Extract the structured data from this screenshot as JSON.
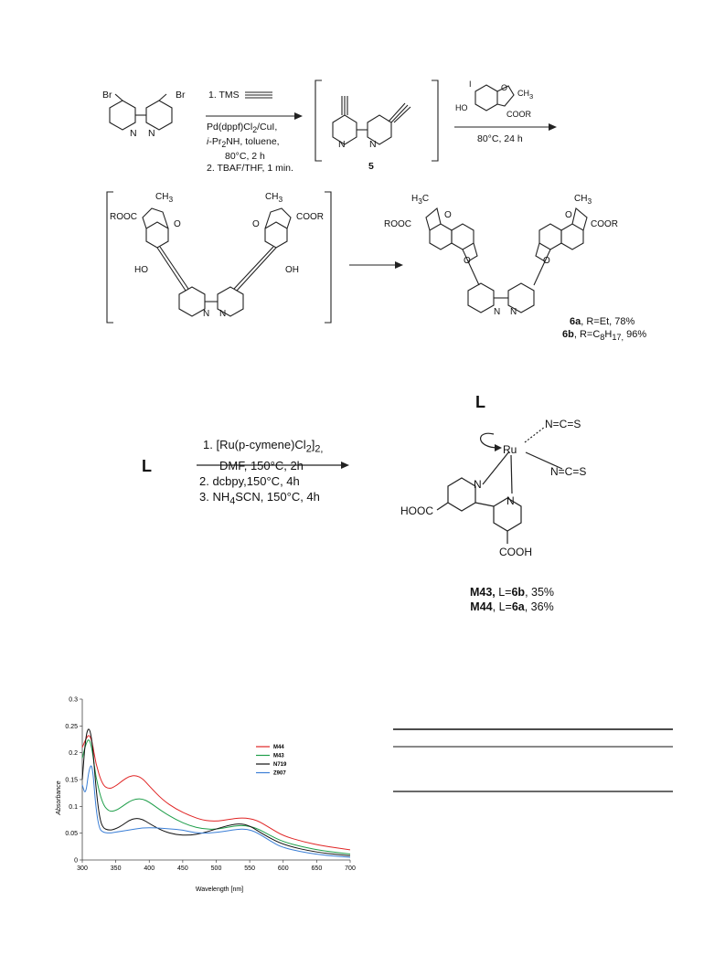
{
  "scheme": {
    "start_material": {
      "br_left": "Br",
      "br_right": "Br",
      "n_left": "N",
      "n_right": "N"
    },
    "step1": {
      "reagent_1": "1.   TMS",
      "line_2": "Pd(dppf)Cl",
      "line_2_sub": "2",
      "line_2_rest": "/CuI,",
      "line_3_pre": "i",
      "line_3": "-Pr",
      "line_3_sub": "2",
      "line_3_rest": "NH, toluene,",
      "line_4": "80°C, 2 h",
      "line_5": "2. TBAF/THF, 1 min."
    },
    "intermediate_5": {
      "label": "5",
      "n_left": "N",
      "n_right": "N"
    },
    "step2": {
      "iodo": "I",
      "ho": "HO",
      "o": "O",
      "ch3": "CH",
      "ch3_sub": "3",
      "coor": "COOR",
      "conditions": "80°C, 24 h"
    },
    "intermediate_bracket": {
      "rooc_left": "ROOC",
      "cooR_right": "COOR",
      "ch3_left": "CH",
      "ch3_right": "CH",
      "sub3": "3",
      "oh_left": "HO",
      "oh_right": "OH",
      "o": "O",
      "n": "N"
    },
    "product_6": {
      "h3c": "H",
      "h3c_sub": "3",
      "h3c_rest": "C",
      "ch3": "CH",
      "ch3_sub": "3",
      "rooc": "ROOC",
      "coor": "COOR",
      "o": "O",
      "n": "N",
      "label_6a_bold": "6a",
      "label_6a": ", R=Et, 78%",
      "label_6b_bold": "6b",
      "label_6b_pre": ", R=C",
      "label_6b_sub1": "8",
      "label_6b_mid": "H",
      "label_6b_sub2": "17,",
      "label_6b_rest": " 96%"
    },
    "step3": {
      "ligand": "L",
      "line_1_pre": "1. [Ru(p-cymene)Cl",
      "line_1_sub": "2",
      "line_1_mid": "]",
      "line_1_sub2": "2,",
      "line_2": "DMF, 150°C, 2h",
      "line_3": "2. dcbpy,150°C, 4h",
      "line_4_pre": "3. NH",
      "line_4_sub": "4",
      "line_4_rest": "SCN, 150°C, 4h"
    },
    "complex": {
      "ligand": "L",
      "ru": "Ru",
      "ncs_1": "N=C=S",
      "ncs_2": "N=C=S",
      "n_left": "N",
      "n_right": "N",
      "hooc": "HOOC",
      "cooh": "COOH",
      "m43_bold": "M43,",
      "m43_pre": " L=",
      "m43_lig": "6b",
      "m43_rest": ", 35%",
      "m44_bold": "M44",
      "m44_pre": ", L=",
      "m44_lig": "6a",
      "m44_rest": ", 36%"
    }
  },
  "chart_data": {
    "type": "line",
    "xlabel": "Wavelength [nm]",
    "ylabel": "Absorbance",
    "xlim": [
      300,
      700
    ],
    "ylim": [
      0,
      0.3
    ],
    "xticks": [
      "300",
      "350",
      "400",
      "450",
      "500",
      "550",
      "600",
      "650",
      "700"
    ],
    "yticks": [
      "0",
      "0.05",
      "0.1",
      "0.15",
      "0.2",
      "0.25",
      "0.3"
    ],
    "grid": false,
    "legend_position": "top-right",
    "series": [
      {
        "name": "M44",
        "color": "#e02424",
        "x": [
          300,
          305,
          310,
          315,
          320,
          330,
          340,
          350,
          360,
          370,
          380,
          390,
          400,
          420,
          440,
          460,
          480,
          500,
          520,
          540,
          560,
          580,
          600,
          630,
          660,
          700
        ],
        "y": [
          0.21,
          0.225,
          0.235,
          0.22,
          0.18,
          0.14,
          0.132,
          0.138,
          0.148,
          0.156,
          0.158,
          0.152,
          0.138,
          0.112,
          0.095,
          0.083,
          0.074,
          0.072,
          0.076,
          0.079,
          0.075,
          0.06,
          0.045,
          0.034,
          0.026,
          0.019
        ]
      },
      {
        "name": "M43",
        "color": "#1f9e4a",
        "x": [
          300,
          305,
          310,
          315,
          320,
          330,
          340,
          350,
          360,
          370,
          380,
          390,
          400,
          420,
          440,
          460,
          480,
          500,
          520,
          540,
          560,
          580,
          600,
          630,
          660,
          700
        ],
        "y": [
          0.19,
          0.215,
          0.228,
          0.205,
          0.155,
          0.105,
          0.09,
          0.092,
          0.1,
          0.109,
          0.114,
          0.114,
          0.108,
          0.09,
          0.075,
          0.064,
          0.058,
          0.057,
          0.062,
          0.065,
          0.06,
          0.046,
          0.034,
          0.024,
          0.017,
          0.011
        ]
      },
      {
        "name": "N719",
        "color": "#111111",
        "x": [
          300,
          305,
          310,
          315,
          320,
          325,
          330,
          340,
          350,
          360,
          370,
          380,
          390,
          400,
          420,
          440,
          460,
          480,
          500,
          520,
          535,
          550,
          570,
          600,
          650,
          700
        ],
        "y": [
          0.15,
          0.23,
          0.25,
          0.22,
          0.14,
          0.085,
          0.06,
          0.055,
          0.058,
          0.065,
          0.074,
          0.078,
          0.076,
          0.068,
          0.054,
          0.047,
          0.046,
          0.05,
          0.058,
          0.065,
          0.068,
          0.064,
          0.048,
          0.028,
          0.014,
          0.008
        ]
      },
      {
        "name": "Z907",
        "color": "#3b7fd6",
        "x": [
          300,
          305,
          310,
          315,
          320,
          325,
          330,
          340,
          350,
          370,
          390,
          410,
          430,
          450,
          470,
          490,
          510,
          530,
          545,
          560,
          580,
          600,
          650,
          700
        ],
        "y": [
          0.14,
          0.12,
          0.17,
          0.18,
          0.1,
          0.06,
          0.052,
          0.05,
          0.052,
          0.056,
          0.06,
          0.06,
          0.058,
          0.056,
          0.05,
          0.05,
          0.053,
          0.057,
          0.058,
          0.052,
          0.036,
          0.022,
          0.01,
          0.005
        ]
      }
    ]
  }
}
